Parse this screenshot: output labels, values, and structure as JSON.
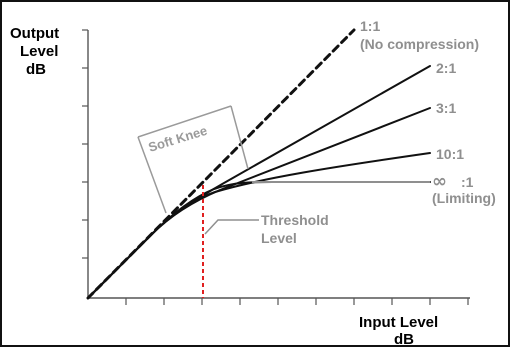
{
  "diagram": {
    "y_axis_label_lines": [
      "Output",
      "Level",
      "dB"
    ],
    "x_axis_label_lines": [
      "Input Level",
      "dB"
    ],
    "curves": [
      {
        "label": "1:1",
        "subtitle": "(No compression)",
        "ratio": 1,
        "style": "dashed"
      },
      {
        "label": "2:1",
        "ratio": 2,
        "style": "solid"
      },
      {
        "label": "3:1",
        "ratio": 3,
        "style": "solid"
      },
      {
        "label": "10:1",
        "ratio": 10,
        "style": "solid"
      },
      {
        "label": ":1",
        "subtitle": "(Limiting)",
        "ratio": "infinity",
        "style": "solid"
      }
    ],
    "infinity_symbol": "∞",
    "soft_knee_label": "Soft Knee",
    "threshold_label_lines": [
      "Threshold",
      "Level"
    ],
    "colors": {
      "axis": "#555555",
      "curve": "#111111",
      "label_gray": "#8f8f8f",
      "threshold_line": "#e02020",
      "border": "#111111"
    }
  }
}
